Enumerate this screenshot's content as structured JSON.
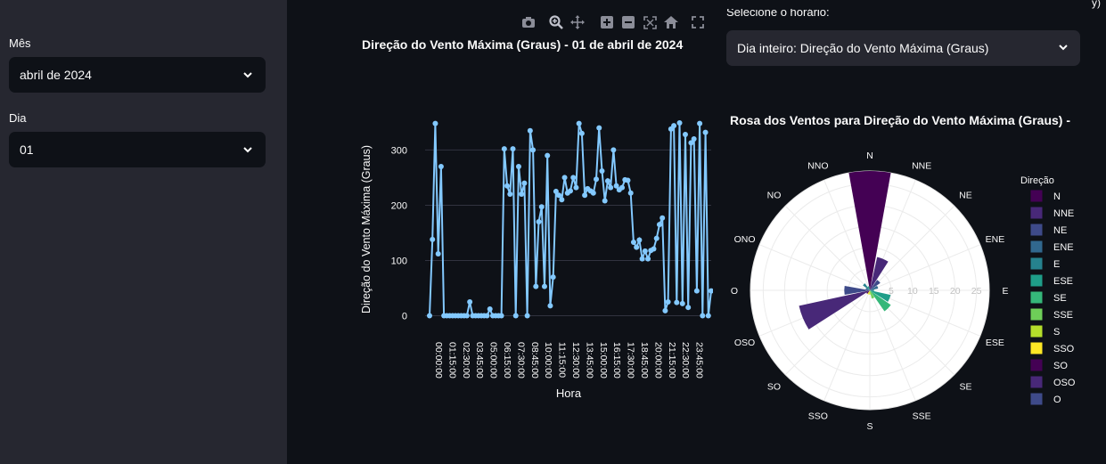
{
  "sidebar": {
    "month_label": "Mês",
    "month_value": "abril de 2024",
    "day_label": "Dia",
    "day_value": "01"
  },
  "main": {
    "time_select_label": "Selecione o horário:",
    "time_select_value": "Dia inteiro: Direção do Vento Máxima (Graus)",
    "corner_text": "y)"
  },
  "modebar_icons": [
    "camera-icon",
    "zoom-icon",
    "pan-icon",
    "zoom-in-icon",
    "zoom-out-icon",
    "autoscale-icon",
    "reset-axes-icon",
    "fullscreen-icon"
  ],
  "colors": {
    "line": "#83c9ff",
    "bar": "#440154",
    "bg": "#0e1117",
    "sidebar": "#262730"
  },
  "chart_data": [
    {
      "type": "line",
      "title": "Direção do Vento Máxima (Graus) - 01 de abril de 2024",
      "xlabel": "Hora",
      "ylabel": "Direção do Vento Máxima (Graus)",
      "ylim": [
        -25,
        370
      ],
      "yticks": [
        0,
        100,
        200,
        300
      ],
      "xtick_labels": [
        "00:00:00",
        "01:15:00",
        "02:30:00",
        "03:45:00",
        "05:00:00",
        "06:15:00",
        "07:30:00",
        "08:45:00",
        "10:00:00",
        "11:15:00",
        "12:30:00",
        "13:45:00",
        "15:00:00",
        "16:15:00",
        "17:30:00",
        "18:45:00",
        "20:00:00",
        "21:15:00",
        "22:30:00",
        "23:45:00"
      ],
      "x_interval_minutes": 15,
      "values": [
        0,
        138,
        348,
        112,
        270,
        0,
        0,
        0,
        0,
        0,
        0,
        0,
        0,
        0,
        25,
        0,
        0,
        0,
        0,
        0,
        0,
        12,
        0,
        0,
        0,
        0,
        302,
        235,
        220,
        302,
        0,
        270,
        220,
        240,
        0,
        335,
        300,
        53,
        170,
        197,
        53,
        290,
        18,
        70,
        225,
        218,
        210,
        250,
        222,
        226,
        250,
        232,
        348,
        330,
        218,
        230,
        226,
        222,
        247,
        340,
        262,
        208,
        244,
        232,
        300,
        235,
        228,
        232,
        246,
        245,
        222,
        133,
        124,
        137,
        103,
        117,
        103,
        118,
        121,
        140,
        165,
        177,
        9,
        25,
        338,
        344,
        24,
        349,
        22,
        328,
        15,
        313,
        320,
        45,
        348,
        0,
        332,
        0,
        45
      ]
    },
    {
      "type": "bar",
      "subtype": "polar",
      "title": "Rosa dos Ventos para Direção do Vento Máxima (Graus) -",
      "legend_title": "Direção",
      "legend_position": "right",
      "categories": [
        "N",
        "NNE",
        "NE",
        "ENE",
        "E",
        "ESE",
        "SE",
        "SSE",
        "S",
        "SSO",
        "SO",
        "OSO",
        "O",
        "ONO",
        "NO",
        "NNO"
      ],
      "values": [
        28,
        8,
        3,
        2,
        1,
        5,
        6,
        2,
        1,
        1,
        1,
        17,
        6,
        1,
        2,
        1
      ],
      "radial_ticks": [
        5,
        10,
        15,
        20,
        25
      ],
      "radial_range": [
        0,
        28
      ],
      "legend_categories": [
        "N",
        "NNE",
        "NE",
        "ENE",
        "E",
        "ESE",
        "SE",
        "SSE",
        "S",
        "SSO",
        "SO",
        "OSO",
        "O"
      ],
      "colors": {
        "N": "#440154",
        "NNE": "#482878",
        "NE": "#3e4a89",
        "ENE": "#31688e",
        "E": "#26828e",
        "ESE": "#1f9e89",
        "SE": "#35b779",
        "SSE": "#6ece58",
        "S": "#b5de2b",
        "SSO": "#fde725",
        "SO": "#440154",
        "OSO": "#482878",
        "O": "#3e4a89",
        "ONO": "#31688e",
        "NO": "#26828e",
        "NNO": "#1f9e89"
      }
    }
  ]
}
